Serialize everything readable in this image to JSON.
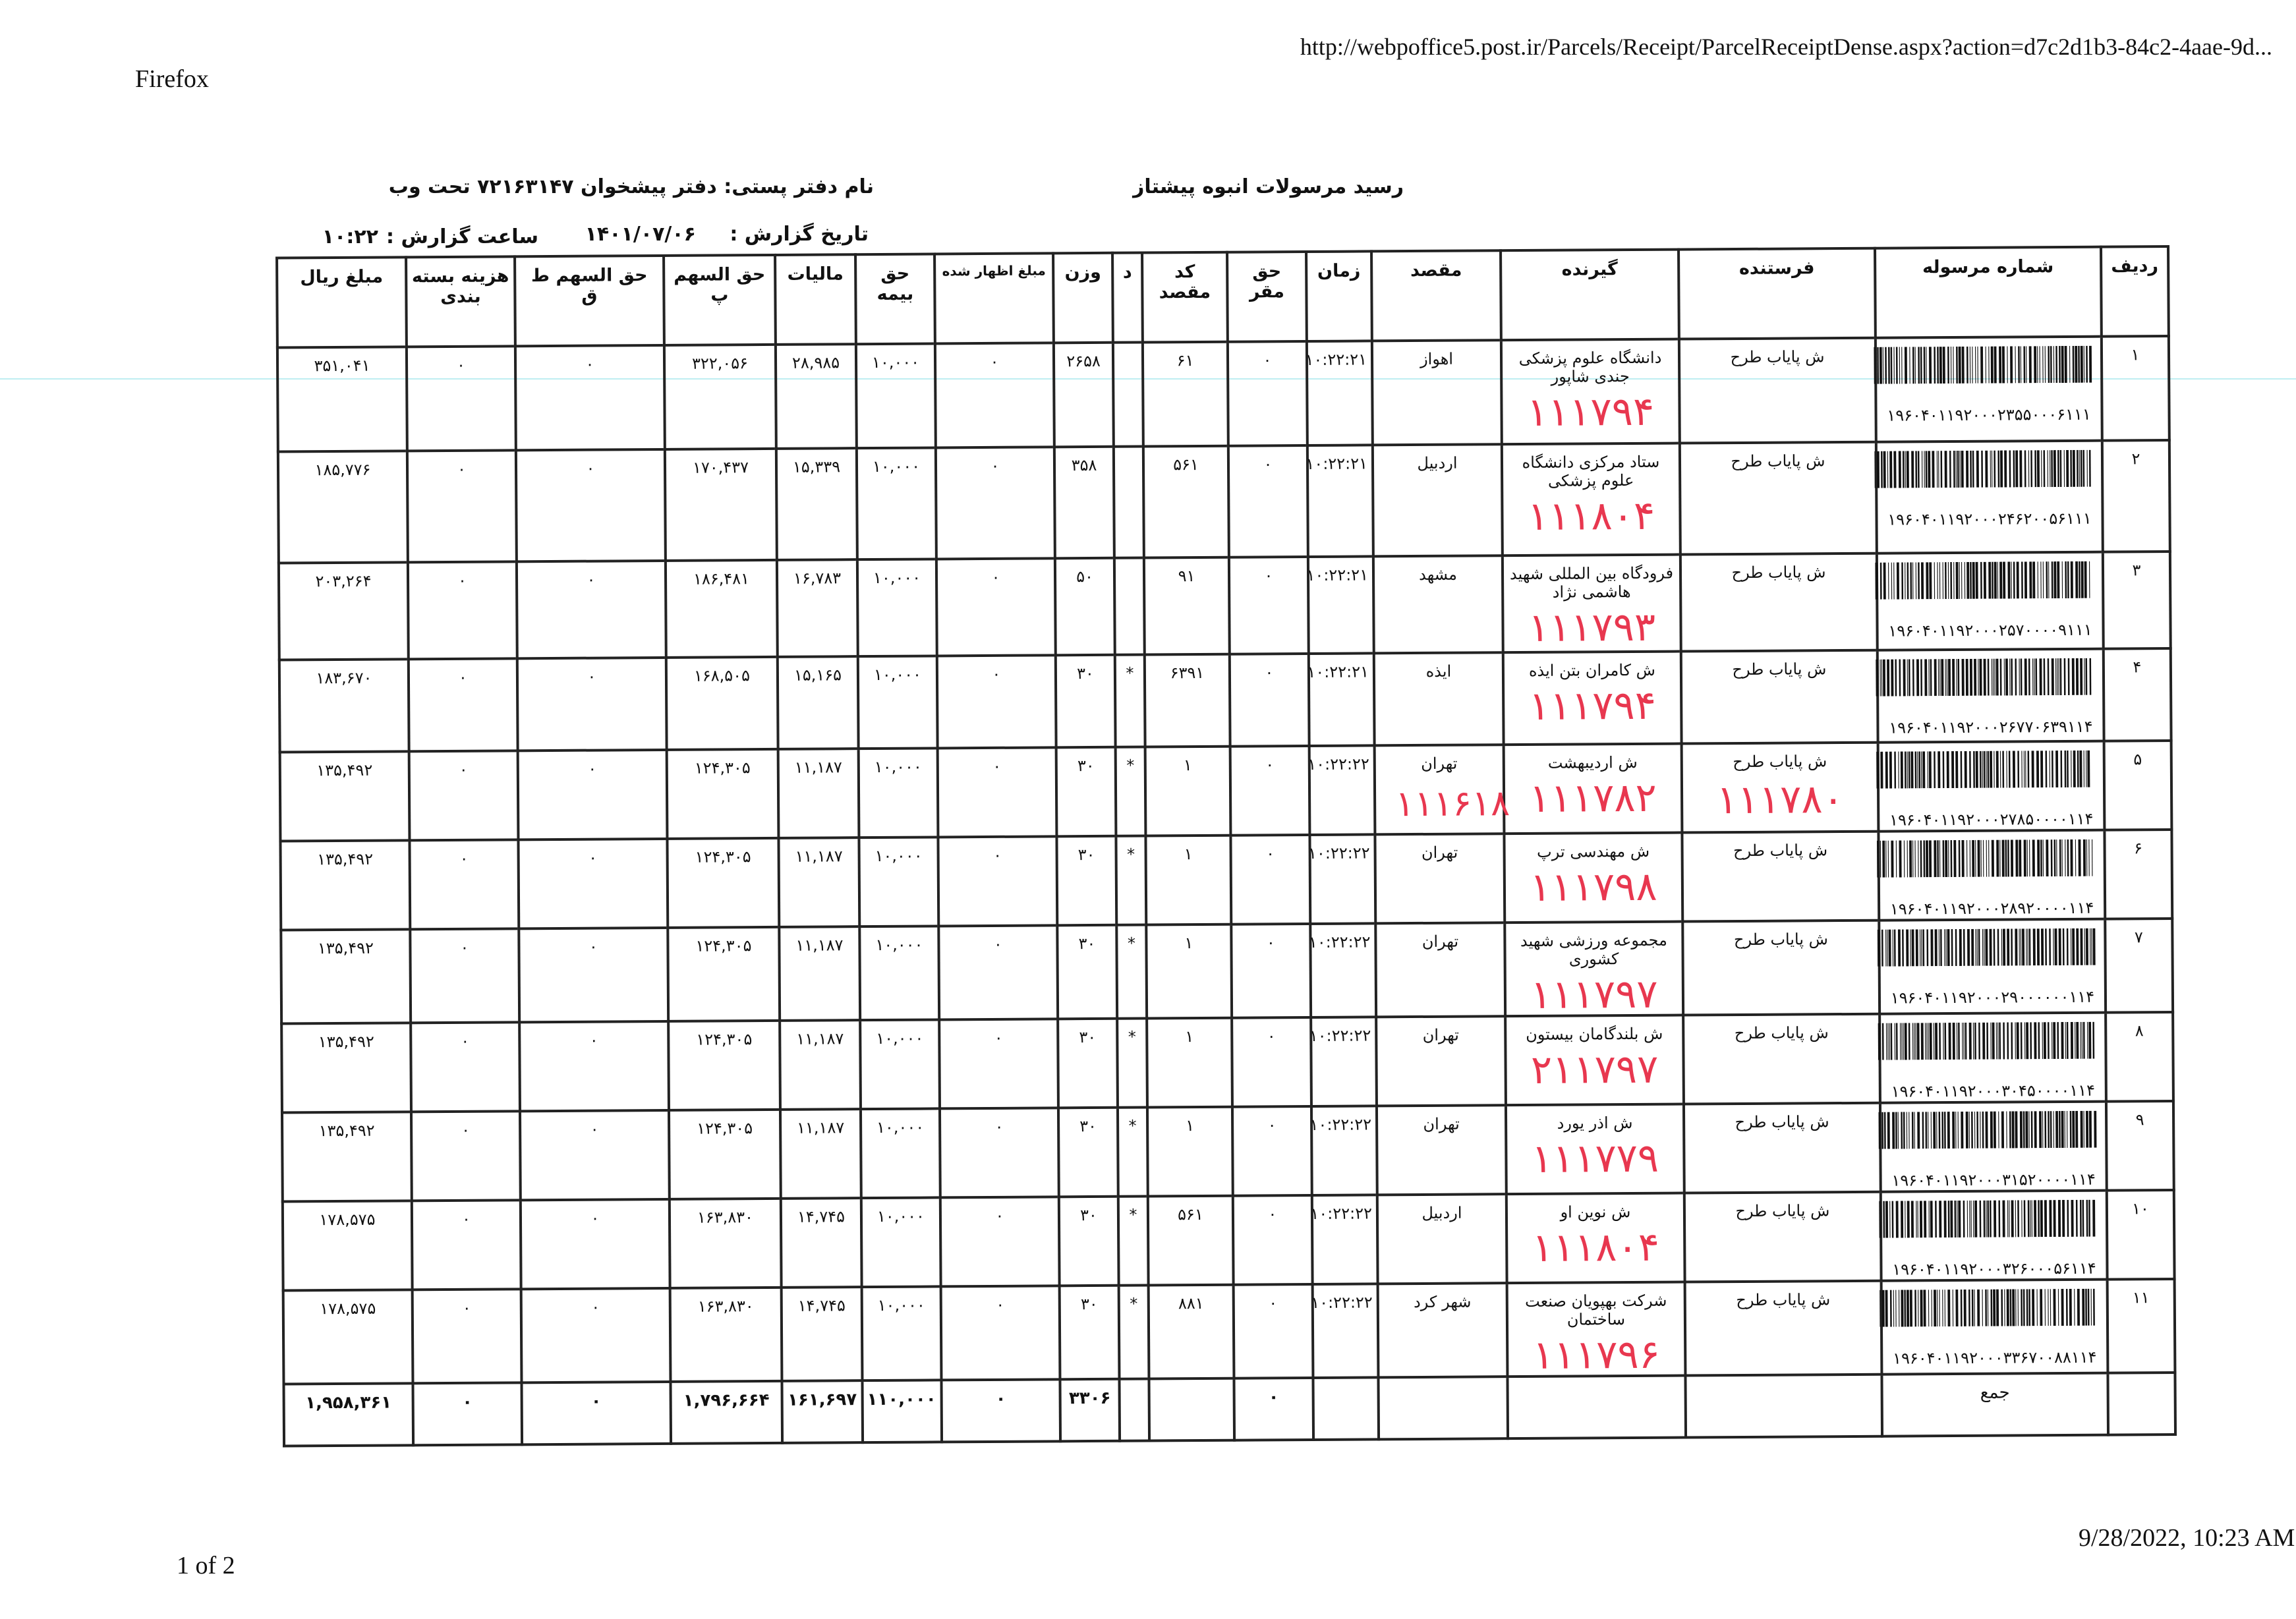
{
  "browser": {
    "app_name": "Firefox",
    "url": "http://webpoffice5.post.ir/Parcels/Receipt/ParcelReceiptDense.aspx?action=d7c2d1b3-84c2-4aae-9d...",
    "page_indicator": "1 of 2",
    "print_datetime": "9/28/2022, 10:23 AM"
  },
  "report": {
    "title": "رسید مرسولات انبوه  پیشتاز",
    "office_label": "نام دفتر پستی:  دفتر پیشخوان ۷۲۱۶۳۱۴۷ تحت وب",
    "date_label": "تاریخ گزارش :",
    "date_value": "۱۴۰۱/۰۷/۰۶",
    "time_label": "ساعت گزارش :",
    "time_value": "۱۰:۲۲"
  },
  "table": {
    "columns": [
      "ردیف",
      "شماره مرسوله",
      "فرستنده",
      "گیرنده",
      "مقصد",
      "زمان",
      "حق مقر",
      "کد مقصد",
      "د",
      "وزن",
      "مبلغ اظهار شده",
      "حق بیمه",
      "مالیات",
      "حق السهم پ",
      "حق السهم ط ق",
      "هزینه بسته بندی",
      "مبلغ ریال"
    ],
    "rows": [
      {
        "cells": [
          "۱",
          "۱۹۶۰۴۰۱۱۹۲۰۰۰۲۳۵۵۰۰۰۶۱۱۱",
          "ش پایاب طرح",
          "دانشگاه علوم پزشکی جندی شاپور",
          "اهواز",
          "۱۰:۲۲:۲۱",
          "۰",
          "۶۱",
          "",
          "۲۶۵۸",
          "۰",
          "۱۰,۰۰۰",
          "۲۸,۹۸۵",
          "۳۲۲,۰۵۶",
          "۰",
          "۰",
          "۳۵۱,۰۴۱"
        ],
        "handwritten": {
          "receiver": "۱۱۱۷۹۴"
        }
      },
      {
        "cells": [
          "۲",
          "۱۹۶۰۴۰۱۱۹۲۰۰۰۲۴۶۲۰۰۵۶۱۱۱",
          "ش پایاب طرح",
          "ستاد مرکزی دانشگاه علوم پزشکی",
          "اردبیل",
          "۱۰:۲۲:۲۱",
          "۰",
          "۵۶۱",
          "",
          "۳۵۸",
          "۰",
          "۱۰,۰۰۰",
          "۱۵,۳۳۹",
          "۱۷۰,۴۳۷",
          "۰",
          "۰",
          "۱۸۵,۷۷۶"
        ],
        "handwritten": {
          "receiver": "۱۱۱۸۰۴"
        }
      },
      {
        "cells": [
          "۳",
          "۱۹۶۰۴۰۱۱۹۲۰۰۰۲۵۷۰۰۰۰۹۱۱۱",
          "ش پایاب طرح",
          "فرودگاه بین المللی شهید هاشمی نژاد",
          "مشهد",
          "۱۰:۲۲:۲۱",
          "۰",
          "۹۱",
          "",
          "۵۰",
          "۰",
          "۱۰,۰۰۰",
          "۱۶,۷۸۳",
          "۱۸۶,۴۸۱",
          "۰",
          "۰",
          "۲۰۳,۲۶۴"
        ],
        "handwritten": {
          "receiver": "۱۱۱۷۹۳"
        }
      },
      {
        "cells": [
          "۴",
          "۱۹۶۰۴۰۱۱۹۲۰۰۰۲۶۷۷۰۶۳۹۱۱۴",
          "ش پایاب طرح",
          "ش کامران بتن ایذه",
          "ایذه",
          "۱۰:۲۲:۲۱",
          "۰",
          "۶۳۹۱",
          "*",
          "۳۰",
          "۰",
          "۱۰,۰۰۰",
          "۱۵,۱۶۵",
          "۱۶۸,۵۰۵",
          "۰",
          "۰",
          "۱۸۳,۶۷۰"
        ],
        "handwritten": {
          "receiver": "۱۱۱۷۹۴"
        }
      },
      {
        "cells": [
          "۵",
          "۱۹۶۰۴۰۱۱۹۲۰۰۰۲۷۸۵۰۰۰۰۱۱۴",
          "ش پایاب طرح",
          "ش اردیبهشت",
          "تهران",
          "۱۰:۲۲:۲۲",
          "۰",
          "۱",
          "*",
          "۳۰",
          "۰",
          "۱۰,۰۰۰",
          "۱۱,۱۸۷",
          "۱۲۴,۳۰۵",
          "۰",
          "۰",
          "۱۳۵,۴۹۲"
        ],
        "handwritten": {
          "receiver": "۱۱۱۷۸۲",
          "sender": "۱۱۱۷۸۰",
          "destination": "۱۱۱۶۱۸"
        }
      },
      {
        "cells": [
          "۶",
          "۱۹۶۰۴۰۱۱۹۲۰۰۰۲۸۹۲۰۰۰۰۱۱۴",
          "ش پایاب طرح",
          "ش مهندسی ترپ",
          "تهران",
          "۱۰:۲۲:۲۲",
          "۰",
          "۱",
          "*",
          "۳۰",
          "۰",
          "۱۰,۰۰۰",
          "۱۱,۱۸۷",
          "۱۲۴,۳۰۵",
          "۰",
          "۰",
          "۱۳۵,۴۹۲"
        ],
        "handwritten": {
          "receiver": "۱۱۱۷۹۸"
        }
      },
      {
        "cells": [
          "۷",
          "۱۹۶۰۴۰۱۱۹۲۰۰۰۲۹۰۰۰۰۰۰۱۱۴",
          "ش پایاب طرح",
          "مجموعه ورزشی شهید کشوری",
          "تهران",
          "۱۰:۲۲:۲۲",
          "۰",
          "۱",
          "*",
          "۳۰",
          "۰",
          "۱۰,۰۰۰",
          "۱۱,۱۸۷",
          "۱۲۴,۳۰۵",
          "۰",
          "۰",
          "۱۳۵,۴۹۲"
        ],
        "handwritten": {
          "receiver": "۱۱۱۷۹۷"
        }
      },
      {
        "cells": [
          "۸",
          "۱۹۶۰۴۰۱۱۹۲۰۰۰۳۰۴۵۰۰۰۰۱۱۴",
          "ش پایاب طرح",
          "ش بلندگامان بیستون",
          "تهران",
          "۱۰:۲۲:۲۲",
          "۰",
          "۱",
          "*",
          "۳۰",
          "۰",
          "۱۰,۰۰۰",
          "۱۱,۱۸۷",
          "۱۲۴,۳۰۵",
          "۰",
          "۰",
          "۱۳۵,۴۹۲"
        ],
        "handwritten": {
          "receiver": "۲۱۱۷۹۷"
        }
      },
      {
        "cells": [
          "۹",
          "۱۹۶۰۴۰۱۱۹۲۰۰۰۳۱۵۲۰۰۰۰۱۱۴",
          "ش پایاب طرح",
          "ش اذر یورد",
          "تهران",
          "۱۰:۲۲:۲۲",
          "۰",
          "۱",
          "*",
          "۳۰",
          "۰",
          "۱۰,۰۰۰",
          "۱۱,۱۸۷",
          "۱۲۴,۳۰۵",
          "۰",
          "۰",
          "۱۳۵,۴۹۲"
        ],
        "handwritten": {
          "receiver": "۱۱۱۷۷۹"
        }
      },
      {
        "cells": [
          "۱۰",
          "۱۹۶۰۴۰۱۱۹۲۰۰۰۳۲۶۰۰۰۵۶۱۱۴",
          "ش پایاب طرح",
          "ش نوین او",
          "اردبیل",
          "۱۰:۲۲:۲۲",
          "۰",
          "۵۶۱",
          "*",
          "۳۰",
          "۰",
          "۱۰,۰۰۰",
          "۱۴,۷۴۵",
          "۱۶۳,۸۳۰",
          "۰",
          "۰",
          "۱۷۸,۵۷۵"
        ],
        "handwritten": {
          "receiver": "۱۱۱۸۰۴"
        }
      },
      {
        "cells": [
          "۱۱",
          "۱۹۶۰۴۰۱۱۹۲۰۰۰۳۳۶۷۰۰۸۸۱۱۴",
          "ش پایاب طرح",
          "شرکت بهپویان صنعت ساختمان",
          "شهر کرد",
          "۱۰:۲۲:۲۲",
          "۰",
          "۸۸۱",
          "*",
          "۳۰",
          "۰",
          "۱۰,۰۰۰",
          "۱۴,۷۴۵",
          "۱۶۳,۸۳۰",
          "۰",
          "۰",
          "۱۷۸,۵۷۵"
        ],
        "handwritten": {
          "receiver": "۱۱۱۷۹۶"
        }
      }
    ],
    "total": [
      "",
      "جمع",
      "",
      "",
      "",
      "",
      "۰",
      "",
      "",
      "۳۳۰۶",
      "۰",
      "۱۱۰,۰۰۰",
      "۱۶۱,۶۹۷",
      "۱,۷۹۶,۶۶۴",
      "۰",
      "۰",
      "۱,۹۵۸,۳۶۱"
    ]
  },
  "colors": {
    "handwriting": "#e8374f",
    "guide_line": "#bfeef2"
  }
}
